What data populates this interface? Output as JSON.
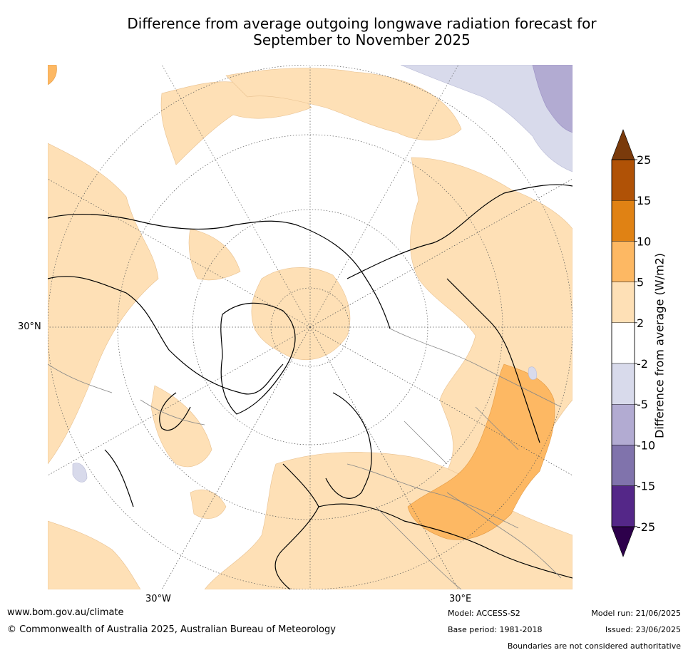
{
  "title_line1": "Difference from average outgoing longwave radiation forecast for",
  "title_line2": "September to November 2025",
  "map": {
    "projection": "north-polar-stereographic",
    "gridlines": "dotted",
    "latitude_label": "30°N",
    "longitude_labels": [
      "30°W",
      "30°E"
    ]
  },
  "colorbar": {
    "label": "Difference from average (W/m2)",
    "ticks": [
      "25",
      "15",
      "10",
      "5",
      "2",
      "-2",
      "-5",
      "-10",
      "-15",
      "-25"
    ],
    "colors_top_to_bottom": [
      "#7a3a0b",
      "#b05206",
      "#e08214",
      "#fdb863",
      "#fee0b6",
      "#ffffff",
      "#d8daeb",
      "#b2abd2",
      "#8073ac",
      "#542788",
      "#2d004b"
    ],
    "extend": "both"
  },
  "footer": {
    "website": "www.bom.gov.au/climate",
    "copyright": "© Commonwealth of Australia 2025, Australian Bureau of Meteorology",
    "model": "Model: ACCESS-S2",
    "base_period": "Base period: 1981-2018",
    "model_run": "Model run: 21/06/2025",
    "issued": "Issued: 23/06/2025",
    "disclaimer": "Boundaries are not considered authoritative"
  }
}
